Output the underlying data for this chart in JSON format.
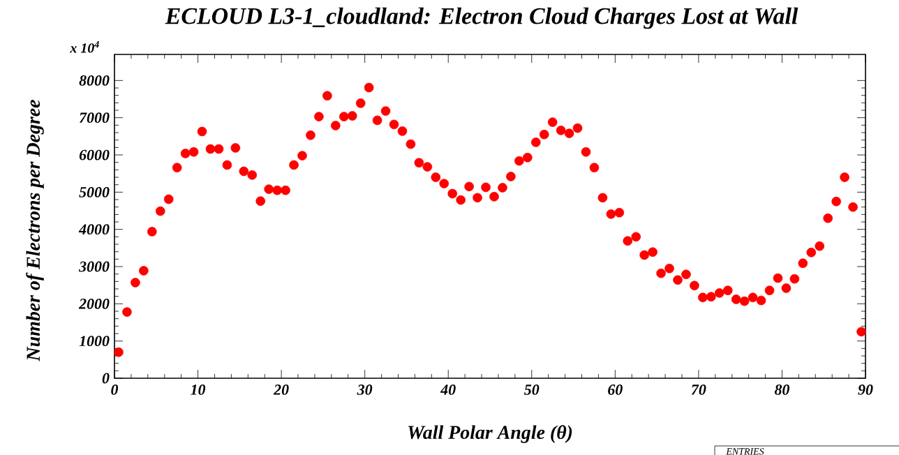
{
  "chart_data": {
    "type": "scatter",
    "title": "ECLOUD L3-1_cloudland: Electron Cloud Charges Lost at Wall",
    "xlabel": "Wall Polar Angle (θ)",
    "ylabel": "Number of Electrons per Degree",
    "annotations": [
      "x 10$^{4}$",
      "ENTRIES"
    ],
    "x": [
      0.5,
      1.5,
      2.5,
      3.5,
      4.5,
      5.5,
      6.5,
      7.5,
      8.5,
      9.5,
      10.5,
      11.5,
      12.5,
      13.5,
      14.5,
      15.5,
      16.5,
      17.5,
      18.5,
      19.5,
      20.5,
      21.5,
      22.5,
      23.5,
      24.5,
      25.5,
      26.5,
      27.5,
      28.5,
      29.5,
      30.5,
      31.5,
      32.5,
      33.5,
      34.5,
      35.5,
      36.5,
      37.5,
      38.5,
      39.5,
      40.5,
      41.5,
      42.5,
      43.5,
      44.5,
      45.5,
      46.5,
      47.5,
      48.5,
      49.5,
      50.5,
      51.5,
      52.5,
      53.5,
      54.5,
      55.5,
      56.5,
      57.5,
      58.5,
      59.5,
      60.5,
      61.5,
      62.5,
      63.5,
      64.5,
      65.5,
      66.5,
      67.5,
      68.5,
      69.5,
      70.5,
      71.5,
      72.5,
      73.5,
      74.5,
      75.5,
      76.5,
      77.5,
      78.5,
      79.5,
      80.5,
      81.5,
      82.5,
      83.5,
      84.5,
      85.5,
      86.5,
      87.5,
      88.5,
      89.5
    ],
    "series": [
      {
        "color": "#ff0000",
        "values": [
          700,
          1780,
          2570,
          2890,
          3940,
          4490,
          4810,
          5660,
          6040,
          6080,
          6630,
          6160,
          6160,
          5730,
          6190,
          5560,
          5460,
          4760,
          5080,
          5050,
          5050,
          5730,
          5980,
          6530,
          7030,
          7590,
          6790,
          7030,
          7050,
          7390,
          7810,
          6930,
          7180,
          6820,
          6640,
          6290,
          5790,
          5680,
          5400,
          5230,
          4960,
          4790,
          5150,
          4850,
          5130,
          4880,
          5120,
          5420,
          5840,
          5930,
          6340,
          6550,
          6880,
          6660,
          6580,
          6720,
          6080,
          5660,
          4850,
          4410,
          4450,
          3690,
          3800,
          3310,
          3390,
          2820,
          2950,
          2640,
          2790,
          2490,
          2170,
          2190,
          2290,
          2360,
          2120,
          2070,
          2170,
          2090,
          2360,
          2690,
          2420,
          2670,
          3090,
          3380,
          3550,
          4300,
          4750,
          5400,
          4600,
          1250
        ]
      }
    ],
    "xlim": [
      0,
      90
    ],
    "ylim": [
      0,
      8700
    ],
    "xticks": [
      0,
      10,
      20,
      30,
      40,
      50,
      60,
      70,
      80,
      90
    ],
    "yticks": [
      0,
      1000,
      2000,
      3000,
      4000,
      5000,
      6000,
      7000,
      8000
    ],
    "marker": "circle",
    "grid": false
  }
}
